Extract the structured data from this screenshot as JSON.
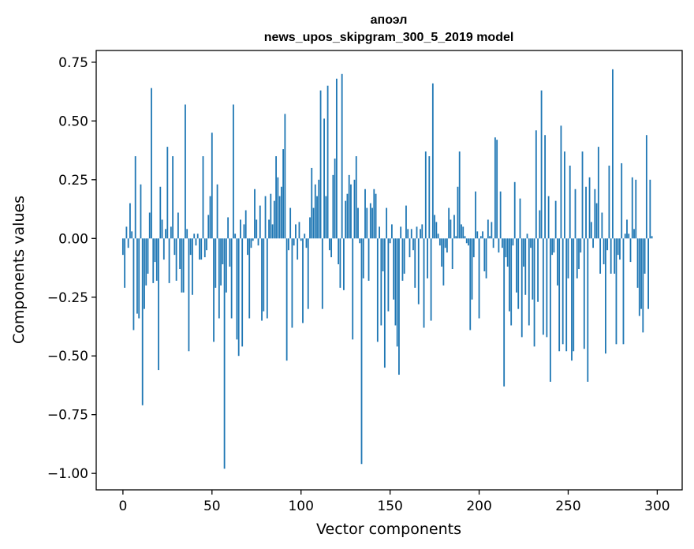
{
  "chart_data": {
    "type": "bar",
    "title": "апоэл",
    "subtitle": "news_upos_skipgram_300_5_2019 model",
    "xlabel": "Vector components",
    "ylabel": "Components values",
    "xlim": [
      -15,
      314
    ],
    "ylim": [
      -1.07,
      0.8
    ],
    "xticks": [
      0,
      50,
      100,
      150,
      200,
      250,
      300
    ],
    "xtick_labels": [
      "0",
      "50",
      "100",
      "150",
      "200",
      "250",
      "300"
    ],
    "yticks": [
      -1.0,
      -0.75,
      -0.5,
      -0.25,
      0.0,
      0.25,
      0.5,
      0.75
    ],
    "ytick_labels": [
      "−1.00",
      "−0.75",
      "−0.50",
      "−0.25",
      "0.00",
      "0.25",
      "0.50",
      "0.75"
    ],
    "bar_color": "#1f77b4",
    "values": [
      -0.07,
      -0.21,
      0.05,
      -0.04,
      0.15,
      0.03,
      -0.39,
      0.35,
      -0.32,
      -0.34,
      0.23,
      -0.71,
      -0.3,
      -0.2,
      -0.15,
      0.11,
      0.64,
      -0.19,
      -0.1,
      -0.18,
      -0.56,
      0.22,
      0.08,
      -0.09,
      0.04,
      0.39,
      -0.19,
      0.05,
      0.35,
      -0.07,
      -0.18,
      0.11,
      -0.13,
      -0.23,
      -0.23,
      0.57,
      0.04,
      -0.48,
      -0.07,
      -0.24,
      0.02,
      -0.03,
      0.02,
      -0.09,
      -0.09,
      0.35,
      -0.08,
      -0.05,
      0.1,
      0.18,
      0.45,
      -0.44,
      -0.21,
      0.23,
      -0.34,
      -0.2,
      -0.11,
      -0.98,
      -0.23,
      0.09,
      -0.12,
      -0.34,
      0.57,
      0.02,
      -0.43,
      -0.5,
      0.08,
      -0.46,
      0.06,
      0.12,
      -0.07,
      -0.34,
      -0.04,
      -0.01,
      0.21,
      0.08,
      -0.03,
      0.14,
      -0.35,
      -0.31,
      0.18,
      -0.34,
      0.08,
      0.19,
      0.06,
      0.16,
      0.35,
      0.26,
      0.18,
      0.22,
      0.38,
      0.53,
      -0.52,
      -0.05,
      0.13,
      -0.38,
      -0.03,
      0.06,
      -0.09,
      0.07,
      -0.01,
      -0.36,
      0.02,
      -0.04,
      -0.3,
      0.09,
      0.3,
      0.13,
      0.23,
      0.18,
      0.25,
      0.63,
      -0.3,
      0.51,
      0.18,
      0.65,
      -0.05,
      -0.08,
      0.27,
      0.34,
      0.68,
      -0.11,
      -0.21,
      0.7,
      -0.22,
      0.16,
      0.19,
      0.27,
      0.23,
      -0.43,
      0.25,
      0.35,
      0.13,
      -0.02,
      -0.96,
      -0.17,
      0.21,
      0.13,
      -0.18,
      0.15,
      0.13,
      0.21,
      0.19,
      -0.44,
      0.05,
      -0.37,
      -0.14,
      -0.55,
      0.13,
      -0.31,
      -0.02,
      0.06,
      -0.26,
      -0.37,
      -0.46,
      -0.58,
      0.05,
      -0.18,
      -0.15,
      0.14,
      0.04,
      -0.08,
      0.04,
      -0.05,
      -0.21,
      0.05,
      -0.28,
      0.04,
      0.06,
      -0.38,
      0.37,
      -0.17,
      0.35,
      -0.35,
      0.66,
      0.1,
      0.07,
      0.02,
      -0.03,
      -0.12,
      -0.2,
      -0.04,
      -0.06,
      0.13,
      0.08,
      -0.13,
      0.1,
      0.01,
      0.22,
      0.37,
      0.06,
      0.05,
      0.01,
      -0.02,
      -0.03,
      -0.39,
      -0.26,
      -0.08,
      0.2,
      0.03,
      -0.34,
      0.01,
      0.03,
      -0.14,
      -0.17,
      0.08,
      0.01,
      0.07,
      -0.04,
      0.43,
      0.42,
      -0.06,
      0.2,
      -0.04,
      -0.63,
      -0.08,
      -0.12,
      -0.31,
      -0.37,
      -0.03,
      0.24,
      -0.23,
      -0.3,
      0.17,
      -0.42,
      -0.12,
      -0.24,
      0.02,
      -0.37,
      -0.04,
      -0.26,
      -0.46,
      0.46,
      -0.27,
      0.12,
      0.63,
      -0.41,
      0.44,
      -0.42,
      0.18,
      -0.61,
      -0.07,
      -0.06,
      0.16,
      -0.2,
      -0.48,
      0.48,
      -0.45,
      0.37,
      -0.48,
      -0.17,
      0.31,
      -0.52,
      -0.48,
      0.21,
      -0.17,
      -0.13,
      -0.06,
      0.37,
      -0.47,
      0.22,
      -0.61,
      0.26,
      0.07,
      -0.04,
      0.21,
      0.15,
      0.39,
      -0.15,
      0.11,
      -0.11,
      -0.49,
      -0.05,
      0.31,
      -0.15,
      0.72,
      -0.15,
      -0.45,
      -0.07,
      -0.09,
      0.32,
      -0.45,
      0.02,
      0.08,
      0.02,
      -0.1,
      0.26,
      0.04,
      0.25,
      -0.21,
      -0.33,
      -0.3,
      -0.4,
      -0.15,
      0.44,
      -0.3,
      0.25,
      0.01
    ]
  }
}
